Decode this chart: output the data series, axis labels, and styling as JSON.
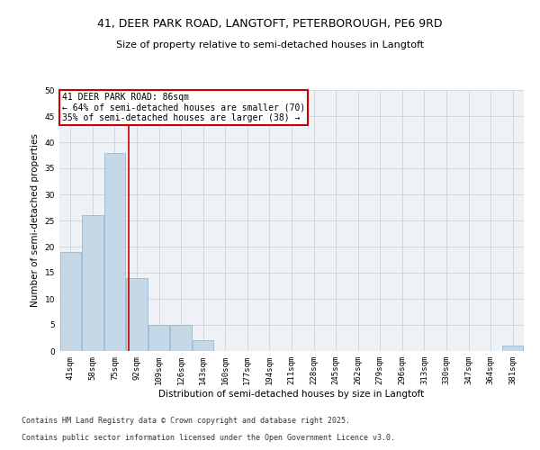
{
  "title_line1": "41, DEER PARK ROAD, LANGTOFT, PETERBOROUGH, PE6 9RD",
  "title_line2": "Size of property relative to semi-detached houses in Langtoft",
  "xlabel": "Distribution of semi-detached houses by size in Langtoft",
  "ylabel": "Number of semi-detached properties",
  "bin_labels": [
    "41sqm",
    "58sqm",
    "75sqm",
    "92sqm",
    "109sqm",
    "126sqm",
    "143sqm",
    "160sqm",
    "177sqm",
    "194sqm",
    "211sqm",
    "228sqm",
    "245sqm",
    "262sqm",
    "279sqm",
    "296sqm",
    "313sqm",
    "330sqm",
    "347sqm",
    "364sqm",
    "381sqm"
  ],
  "bar_values": [
    19,
    26,
    38,
    14,
    5,
    5,
    2,
    0,
    0,
    0,
    0,
    0,
    0,
    0,
    0,
    0,
    0,
    0,
    0,
    0,
    1
  ],
  "bar_color": "#c5d8e8",
  "bar_edge_color": "#8ab0cc",
  "property_line_x": 2.65,
  "property_label": "41 DEER PARK ROAD: 86sqm",
  "smaller_label": "← 64% of semi-detached houses are smaller (70)",
  "larger_label": "35% of semi-detached houses are larger (38) →",
  "annotation_box_color": "#ffffff",
  "annotation_box_edge": "#cc0000",
  "red_line_color": "#cc0000",
  "ylim": [
    0,
    50
  ],
  "yticks": [
    0,
    5,
    10,
    15,
    20,
    25,
    30,
    35,
    40,
    45,
    50
  ],
  "grid_color": "#cccccc",
  "bg_color": "#eef2f7",
  "footer_line1": "Contains HM Land Registry data © Crown copyright and database right 2025.",
  "footer_line2": "Contains public sector information licensed under the Open Government Licence v3.0.",
  "title_fontsize": 9,
  "subtitle_fontsize": 8,
  "tick_fontsize": 6.5,
  "label_fontsize": 7.5,
  "annotation_fontsize": 7,
  "footer_fontsize": 6
}
